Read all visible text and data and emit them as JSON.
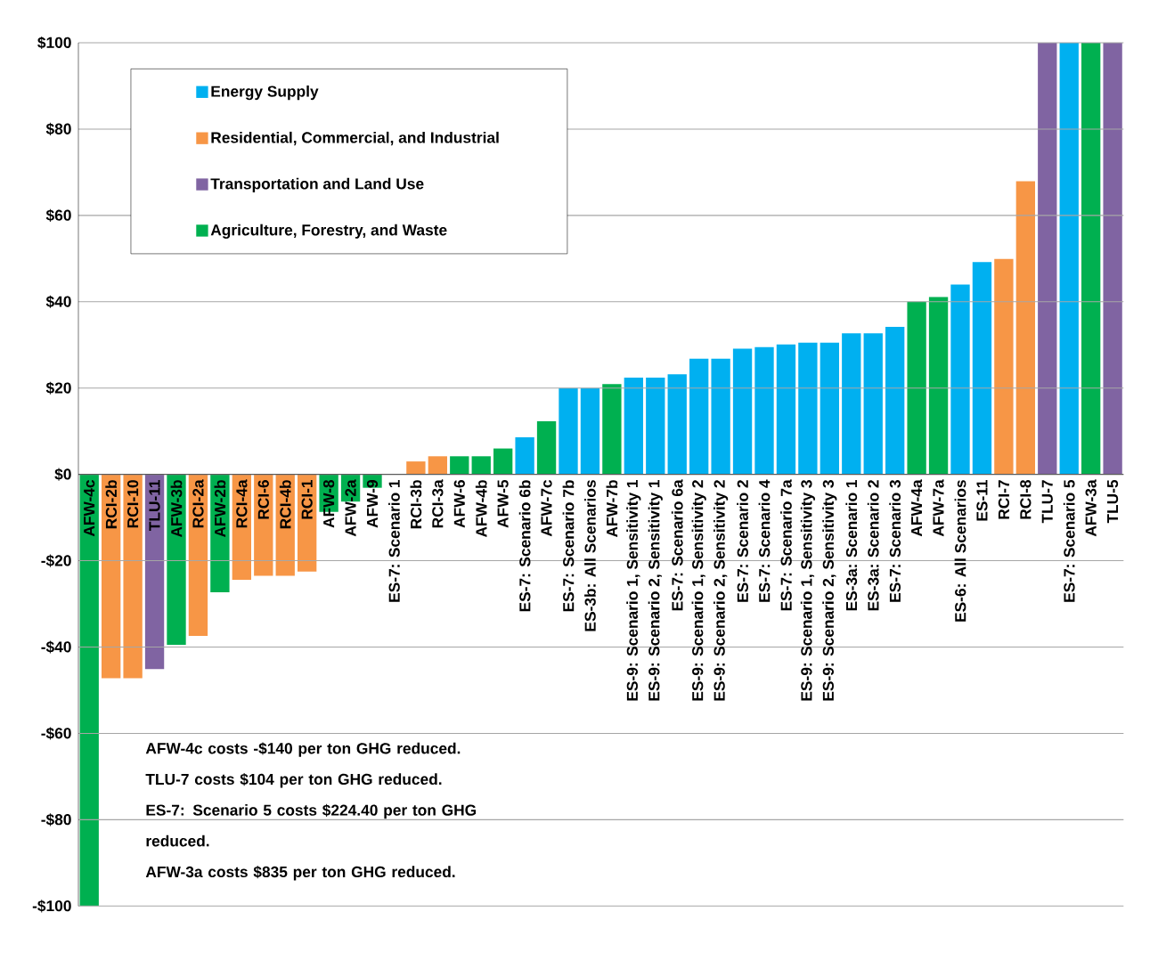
{
  "chart_data": {
    "type": "bar",
    "categories": [
      "AFW-4c",
      "RCI-2b",
      "RCI-10",
      "TLU-11",
      "AFW-3b",
      "RCI-2a",
      "AFW-2b",
      "RCI-4a",
      "RCI-6",
      "RCI-4b",
      "RCI-1",
      "AFW-8",
      "AFW-2a",
      "AFW-9",
      "ES-7: Scenario 1",
      "RCI-3b",
      "RCI-3a",
      "AFW-6",
      "AFW-4b",
      "AFW-5",
      "ES-7: Scenario 6b",
      "AFW-7c",
      "ES-7: Scenario 7b",
      "ES-3b: All Scenarios",
      "AFW-7b",
      "ES-9: Scenario 1, Sensitivity 1",
      "ES-9: Scenario 2, Sensitivity 1",
      "ES-7: Scenario 6a",
      "ES-9: Scenario 1, Sensitivity 2",
      "ES-9: Scenario 2, Sensitivity 2",
      "ES-7: Scenario 2",
      "ES-7: Scenario 4",
      "ES-7: Scenario 7a",
      "ES-9: Scenario 1, Sensitivity 3",
      "ES-9: Scenario 2, Sensitivity 3",
      "ES-3a: Scenario 1",
      "ES-3a: Scenario 2",
      "ES-7: Scenario 3",
      "AFW-4a",
      "AFW-7a",
      "ES-6: All Scenarios",
      "ES-11",
      "RCI-7",
      "RCI-8",
      "TLU-7",
      "ES-7: Scenario 5",
      "AFW-3a",
      "TLU-5"
    ],
    "series": [
      {
        "name": "Energy Supply",
        "color": "#00b0f0",
        "values": [
          null,
          null,
          null,
          null,
          null,
          null,
          null,
          null,
          null,
          null,
          null,
          null,
          null,
          null,
          0,
          null,
          null,
          null,
          null,
          null,
          8.6,
          null,
          20,
          20,
          null,
          22.4,
          22.4,
          23.2,
          26.8,
          26.8,
          29.1,
          29.5,
          30.1,
          30.5,
          30.5,
          32.7,
          32.7,
          34.2,
          null,
          null,
          44,
          49.2,
          null,
          null,
          null,
          100,
          null,
          null
        ]
      },
      {
        "name": "Residential, Commercial, and Industrial",
        "color": "#f79646",
        "values": [
          null,
          -47.2,
          -47.2,
          null,
          null,
          -37.4,
          null,
          -24.4,
          -23.5,
          -23.5,
          -22.5,
          null,
          null,
          null,
          null,
          3,
          4.2,
          null,
          null,
          null,
          null,
          null,
          null,
          null,
          null,
          null,
          null,
          null,
          null,
          null,
          null,
          null,
          null,
          null,
          null,
          null,
          null,
          null,
          null,
          null,
          null,
          null,
          49.9,
          67.9,
          null,
          null,
          null,
          null
        ]
      },
      {
        "name": "Transportation and Land Use",
        "color": "#8064a2",
        "values": [
          null,
          null,
          null,
          -45.1,
          null,
          null,
          null,
          null,
          null,
          null,
          null,
          null,
          null,
          null,
          null,
          null,
          null,
          null,
          null,
          null,
          null,
          null,
          null,
          null,
          null,
          null,
          null,
          null,
          null,
          null,
          null,
          null,
          null,
          null,
          null,
          null,
          null,
          null,
          null,
          null,
          null,
          null,
          null,
          null,
          100,
          null,
          null,
          100
        ]
      },
      {
        "name": "Agriculture, Forestry, and Waste",
        "color": "#00b050",
        "values": [
          -100,
          null,
          null,
          null,
          -39.5,
          null,
          -27.3,
          null,
          null,
          null,
          null,
          -8.7,
          -6.3,
          -3.1,
          null,
          null,
          null,
          4.2,
          4.2,
          6,
          null,
          12.3,
          null,
          null,
          20.9,
          null,
          null,
          null,
          null,
          null,
          null,
          null,
          null,
          null,
          null,
          null,
          null,
          null,
          40,
          41.1,
          null,
          null,
          null,
          null,
          null,
          null,
          100,
          null
        ]
      }
    ],
    "ylim": [
      -100,
      100
    ],
    "yticks": [
      {
        "value": -100,
        "label": "-$100"
      },
      {
        "value": -80,
        "label": "-$80"
      },
      {
        "value": -60,
        "label": "-$60"
      },
      {
        "value": -40,
        "label": "-$40"
      },
      {
        "value": -20,
        "label": "-$20"
      },
      {
        "value": 0,
        "label": "$0"
      },
      {
        "value": 20,
        "label": "$20"
      },
      {
        "value": 40,
        "label": "$40"
      },
      {
        "value": 60,
        "label": "$60"
      },
      {
        "value": 80,
        "label": "$80"
      },
      {
        "value": 100,
        "label": "$100"
      }
    ],
    "grid": "y",
    "legend": "top left",
    "annotations": [
      "AFW-4c costs -$140 per ton GHG reduced.",
      "TLU-7 costs $104 per ton GHG reduced.",
      "ES-7: Scenario 5 costs $224.40 per ton GHG reduced.",
      "AFW-3a costs $835 per ton GHG reduced."
    ]
  }
}
